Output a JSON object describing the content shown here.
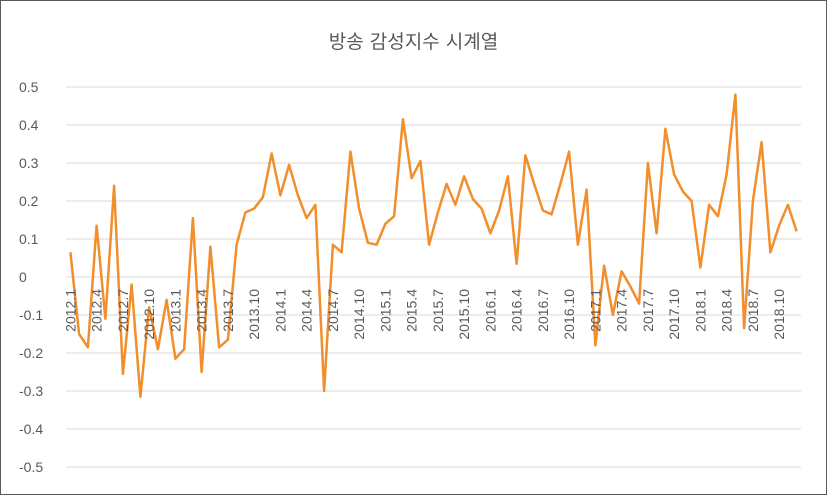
{
  "chart_data": {
    "type": "line",
    "title": "방송 감성지수 시계열",
    "xlabel": "",
    "ylabel": "",
    "ylim": [
      -0.5,
      0.5
    ],
    "yticks": [
      "0.5",
      "0.4",
      "0.3",
      "0.2",
      "0.1",
      "0",
      "-0.1",
      "-0.2",
      "-0.3",
      "-0.4",
      "-0.5"
    ],
    "ytick_values": [
      0.5,
      0.4,
      0.3,
      0.2,
      0.1,
      0,
      -0.1,
      -0.2,
      -0.3,
      -0.4,
      -0.5
    ],
    "grid": true,
    "legend": "none",
    "x": [
      "2012.1",
      "2012.2",
      "2012.3",
      "2012.4",
      "2012.5",
      "2012.6",
      "2012.7",
      "2012.8",
      "2012.9",
      "2012.10",
      "2012.11",
      "2012.12",
      "2013.1",
      "2013.2",
      "2013.3",
      "2013.4",
      "2013.5",
      "2013.6",
      "2013.7",
      "2013.8",
      "2013.9",
      "2013.10",
      "2013.11",
      "2013.12",
      "2014.1",
      "2014.2",
      "2014.3",
      "2014.4",
      "2014.5",
      "2014.6",
      "2014.7",
      "2014.8",
      "2014.9",
      "2014.10",
      "2014.11",
      "2014.12",
      "2015.1",
      "2015.2",
      "2015.3",
      "2015.4",
      "2015.5",
      "2015.6",
      "2015.7",
      "2015.8",
      "2015.9",
      "2015.10",
      "2015.11",
      "2015.12",
      "2016.1",
      "2016.2",
      "2016.3",
      "2016.4",
      "2016.5",
      "2016.6",
      "2016.7",
      "2016.8",
      "2016.9",
      "2016.10",
      "2016.11",
      "2016.12",
      "2017.1",
      "2017.2",
      "2017.3",
      "2017.4",
      "2017.5",
      "2017.6",
      "2017.7",
      "2017.8",
      "2017.9",
      "2017.10",
      "2017.11",
      "2017.12",
      "2018.1",
      "2018.2",
      "2018.3",
      "2018.4",
      "2018.5",
      "2018.6",
      "2018.7",
      "2018.8",
      "2018.9",
      "2018.10",
      "2018.11",
      "2018.12"
    ],
    "xtick_labels": [
      "2012.1",
      "2012.4",
      "2012.7",
      "2012.10",
      "2013.1",
      "2013.4",
      "2013.7",
      "2013.10",
      "2014.1",
      "2014.4",
      "2014.7",
      "2014.10",
      "2015.1",
      "2015.4",
      "2015.7",
      "2015.10",
      "2016.1",
      "2016.4",
      "2016.7",
      "2016.10",
      "2017.1",
      "2017.4",
      "2017.7",
      "2017.10",
      "2018.1",
      "2018.4",
      "2018.7",
      "2018.10"
    ],
    "series": [
      {
        "color": "#f28e2b",
        "values": [
          0.065,
          -0.15,
          -0.185,
          0.135,
          -0.11,
          0.24,
          -0.255,
          -0.02,
          -0.315,
          -0.08,
          -0.19,
          -0.06,
          -0.215,
          -0.19,
          0.155,
          -0.25,
          0.08,
          -0.185,
          -0.165,
          0.085,
          0.17,
          0.18,
          0.21,
          0.325,
          0.215,
          0.295,
          0.215,
          0.155,
          0.19,
          -0.3,
          0.085,
          0.065,
          0.33,
          0.18,
          0.09,
          0.085,
          0.14,
          0.16,
          0.415,
          0.26,
          0.305,
          0.085,
          0.17,
          0.245,
          0.19,
          0.265,
          0.205,
          0.18,
          0.115,
          0.175,
          0.265,
          0.035,
          0.32,
          0.245,
          0.175,
          0.165,
          0.245,
          0.33,
          0.085,
          0.23,
          -0.18,
          0.03,
          -0.1,
          0.015,
          -0.025,
          -0.07,
          0.3,
          0.115,
          0.39,
          0.27,
          0.225,
          0.2,
          0.025,
          0.19,
          0.16,
          0.27,
          0.48,
          -0.135,
          0.2,
          0.355,
          0.065,
          0.135,
          0.19,
          0.12
        ]
      }
    ]
  }
}
